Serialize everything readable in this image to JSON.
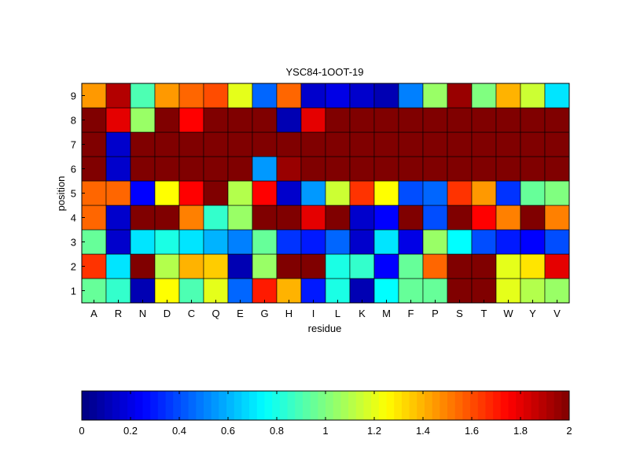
{
  "chart_data": {
    "type": "heatmap",
    "title": "YSC84-1OOT-19",
    "xlabel": "residue",
    "ylabel": "position",
    "x_categories": [
      "A",
      "R",
      "N",
      "D",
      "C",
      "Q",
      "E",
      "G",
      "H",
      "I",
      "L",
      "K",
      "M",
      "F",
      "P",
      "S",
      "T",
      "W",
      "Y",
      "V"
    ],
    "y_categories": [
      "1",
      "2",
      "3",
      "4",
      "5",
      "6",
      "7",
      "8",
      "9"
    ],
    "values": [
      [
        0.95,
        0.85,
        0.1,
        1.25,
        0.9,
        1.2,
        0.45,
        1.7,
        1.4,
        0.3,
        0.8,
        0.1,
        0.75,
        0.95,
        0.95,
        2.0,
        2.0,
        1.2,
        1.1,
        1.05
      ],
      [
        1.65,
        0.7,
        2.0,
        1.1,
        1.4,
        1.35,
        0.1,
        1.05,
        2.0,
        2.0,
        0.8,
        0.85,
        0.25,
        0.95,
        1.55,
        2.0,
        2.0,
        1.2,
        1.3,
        1.8
      ],
      [
        0.95,
        0.15,
        0.7,
        0.8,
        0.7,
        0.6,
        0.5,
        0.95,
        0.35,
        0.3,
        0.45,
        0.15,
        0.7,
        0.2,
        1.05,
        0.75,
        0.4,
        0.3,
        0.25,
        0.4
      ],
      [
        1.55,
        0.15,
        2.0,
        2.0,
        1.5,
        0.85,
        1.05,
        2.0,
        2.0,
        1.8,
        2.0,
        0.15,
        0.25,
        2.0,
        0.4,
        2.0,
        1.75,
        1.5,
        2.0,
        1.5
      ],
      [
        1.55,
        1.55,
        0.25,
        1.25,
        1.75,
        2.0,
        1.1,
        1.75,
        0.15,
        0.55,
        1.15,
        1.65,
        1.25,
        0.4,
        0.45,
        1.65,
        1.45,
        0.35,
        0.95,
        1.0
      ],
      [
        2.0,
        0.15,
        2.0,
        2.0,
        2.0,
        2.0,
        2.0,
        0.55,
        1.95,
        2.0,
        2.0,
        2.0,
        2.0,
        2.0,
        2.0,
        2.0,
        2.0,
        2.0,
        2.0,
        2.0
      ],
      [
        2.0,
        0.15,
        2.0,
        2.0,
        2.0,
        2.0,
        2.0,
        2.0,
        2.0,
        2.0,
        2.0,
        2.0,
        2.0,
        2.0,
        2.0,
        2.0,
        2.0,
        2.0,
        2.0,
        2.0
      ],
      [
        2.0,
        1.8,
        1.05,
        2.0,
        1.75,
        2.0,
        2.0,
        2.0,
        0.1,
        1.8,
        2.0,
        2.0,
        2.0,
        2.0,
        2.0,
        2.0,
        2.0,
        2.0,
        2.0,
        2.0
      ],
      [
        1.45,
        1.9,
        0.9,
        1.45,
        1.55,
        1.6,
        1.2,
        0.45,
        1.55,
        0.15,
        0.2,
        0.15,
        0.1,
        0.5,
        1.05,
        1.95,
        1.0,
        1.4,
        1.15,
        0.7
      ]
    ],
    "clim": [
      0,
      2
    ],
    "colormap": "jet",
    "colorbar": {
      "orientation": "horizontal",
      "placement": "bottom",
      "ticks": [
        "0",
        "0.2",
        "0.4",
        "0.6",
        "0.8",
        "1",
        "1.2",
        "1.4",
        "1.6",
        "1.8",
        "2"
      ]
    }
  }
}
